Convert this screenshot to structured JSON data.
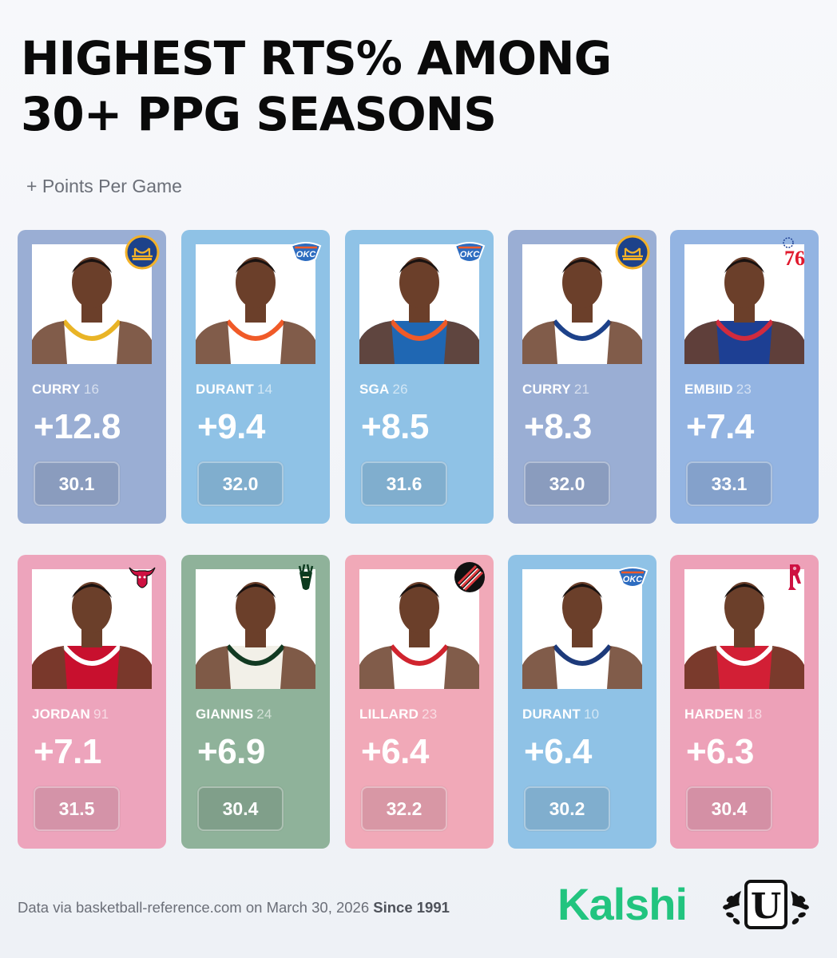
{
  "title": {
    "line1": "HIGHEST RTS% AMONG",
    "line2": "30+ PPG SEASONS"
  },
  "subtitle": "+ Points Per Game",
  "cards": [
    {
      "name": "CURRY",
      "year": "16",
      "delta": "+12.8",
      "ppg": "30.1",
      "team": "GSW",
      "color": "#9aaed4",
      "jersey": "#ffffff",
      "trim": "#e9b426",
      "logo": "warriors-logo-icon"
    },
    {
      "name": "DURANT",
      "year": "14",
      "delta": "+9.4",
      "ppg": "32.0",
      "team": "OKC",
      "color": "#8fc2e6",
      "jersey": "#ffffff",
      "trim": "#f05a28",
      "logo": "thunder-logo-icon"
    },
    {
      "name": "SGA",
      "year": "26",
      "delta": "+8.5",
      "ppg": "31.6",
      "team": "OKC",
      "color": "#8fc2e6",
      "jersey": "#1f67b3",
      "trim": "#f05a28",
      "logo": "thunder-logo-icon"
    },
    {
      "name": "CURRY",
      "year": "21",
      "delta": "+8.3",
      "ppg": "32.0",
      "team": "GSW",
      "color": "#9aaed4",
      "jersey": "#ffffff",
      "trim": "#1d428a",
      "logo": "warriors-logo-icon"
    },
    {
      "name": "EMBIID",
      "year": "23",
      "delta": "+7.4",
      "ppg": "33.1",
      "team": "PHI",
      "color": "#93b4e2",
      "jersey": "#1d3f93",
      "trim": "#d12b3e",
      "logo": "sixers-logo-icon"
    },
    {
      "name": "JORDAN",
      "year": "91",
      "delta": "+7.1",
      "ppg": "31.5",
      "team": "CHI",
      "color": "#eda4bc",
      "jersey": "#c8102e",
      "trim": "#ffffff",
      "logo": "bulls-logo-icon"
    },
    {
      "name": "GIANNIS",
      "year": "24",
      "delta": "+6.9",
      "ppg": "30.4",
      "team": "MIL",
      "color": "#8fb29a",
      "jersey": "#f2f0e8",
      "trim": "#123a22",
      "logo": "bucks-logo-icon"
    },
    {
      "name": "LILLARD",
      "year": "23",
      "delta": "+6.4",
      "ppg": "32.2",
      "team": "POR",
      "color": "#f1a9b8",
      "jersey": "#ffffff",
      "trim": "#d0242e",
      "logo": "blazers-logo-icon"
    },
    {
      "name": "DURANT",
      "year": "10",
      "delta": "+6.4",
      "ppg": "30.2",
      "team": "OKC",
      "color": "#8fc2e6",
      "jersey": "#ffffff",
      "trim": "#1d3a7a",
      "logo": "thunder-logo-icon"
    },
    {
      "name": "HARDEN",
      "year": "18",
      "delta": "+6.3",
      "ppg": "30.4",
      "team": "HOU",
      "color": "#eda1b8",
      "jersey": "#d21f35",
      "trim": "#ffffff",
      "logo": "rockets-logo-icon"
    }
  ],
  "logo_text": {
    "thunder": "OKC",
    "sixers": "76"
  },
  "footer": {
    "source": "Data via basketball-reference.com on March 30, 2026",
    "since": "Since 1991",
    "brand": "Kalshi",
    "emblem_letter": "U"
  }
}
